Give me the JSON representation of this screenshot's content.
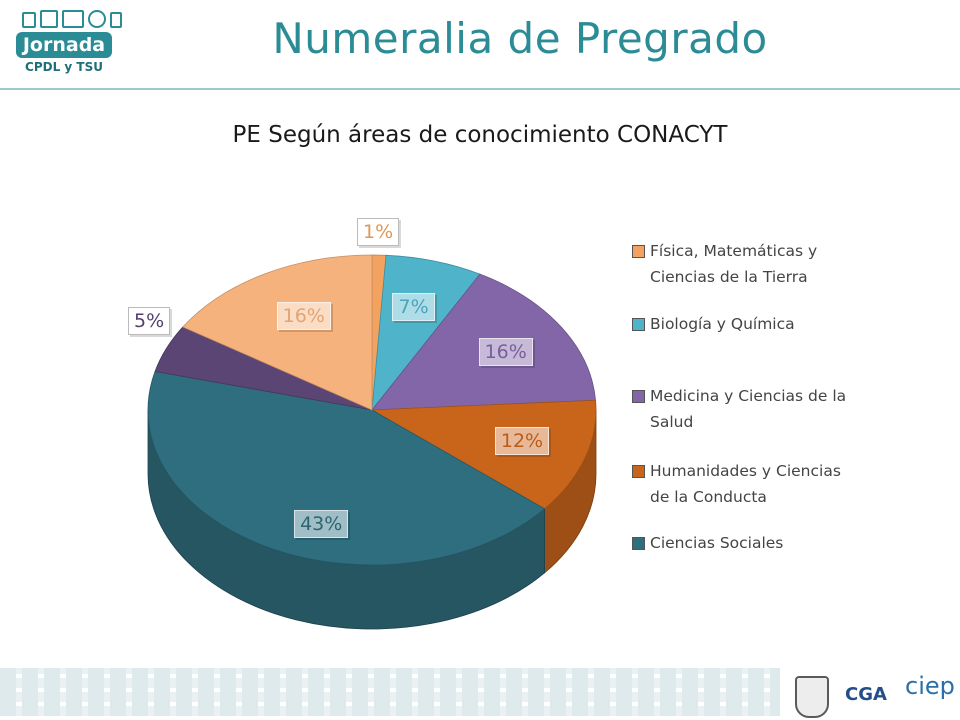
{
  "header": {
    "logo": {
      "brand": "Jornada",
      "sub": "CPDL y TSU"
    },
    "title": "Numeralia de Pregrado"
  },
  "footer": {
    "cga": "CGA",
    "ciep": "ciep"
  },
  "chart_data": {
    "type": "pie",
    "title": "PE Según áreas de conocimiento CONACYT",
    "legend_placement": "right",
    "series": [
      {
        "name": "Física, Matemáticas y Ciencias de la Tierra",
        "value": 1,
        "label": "1%",
        "color": "#f3a35f"
      },
      {
        "name": "Biología y Química",
        "value": 7,
        "label": "7%",
        "color": "#4fb3c9"
      },
      {
        "name": "Medicina y Ciencias de la Salud",
        "value": 16,
        "label": "16%",
        "color": "#8266a8"
      },
      {
        "name": "Humanidades y Ciencias de la Conducta",
        "value": 12,
        "label": "12%",
        "color": "#c9651b"
      },
      {
        "name": "Ciencias Sociales",
        "value": 43,
        "label": "43%",
        "color": "#2f6e7e"
      },
      {
        "name": "",
        "value": 5,
        "label": "5%",
        "color": "#5a4574"
      },
      {
        "name": "",
        "value": 16,
        "label": "16%",
        "color": "#f6b27c"
      }
    ]
  }
}
